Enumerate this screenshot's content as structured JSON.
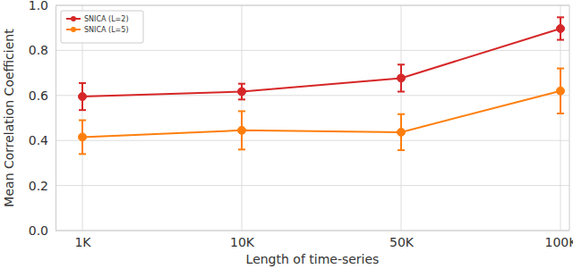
{
  "chart_data": {
    "type": "line",
    "x_label": "Length of time-series",
    "y_label": "Mean Correlation Coefficient",
    "categories": [
      "1K",
      "10K",
      "50K",
      "100K"
    ],
    "series": [
      {
        "name": "SNICA (L=2)",
        "color": "#d62728",
        "marker": "o",
        "line_style": "solid",
        "values": [
          0.595,
          0.617,
          0.677,
          0.897
        ],
        "errors": [
          0.06,
          0.035,
          0.06,
          0.05
        ]
      },
      {
        "name": "SNICA (L=5)",
        "color": "#ff7f0e",
        "marker": "o",
        "line_style": "solid",
        "values": [
          0.415,
          0.445,
          0.437,
          0.62
        ],
        "errors": [
          0.075,
          0.085,
          0.08,
          0.1
        ]
      }
    ],
    "ylim": [
      0,
      1
    ],
    "yticks": [
      {
        "value": 0,
        "label": "0.0"
      },
      0.2,
      0.4,
      0.6,
      0.8,
      {
        "value": 1,
        "label": "1.0"
      }
    ],
    "grid": true,
    "legend": "upper left"
  }
}
